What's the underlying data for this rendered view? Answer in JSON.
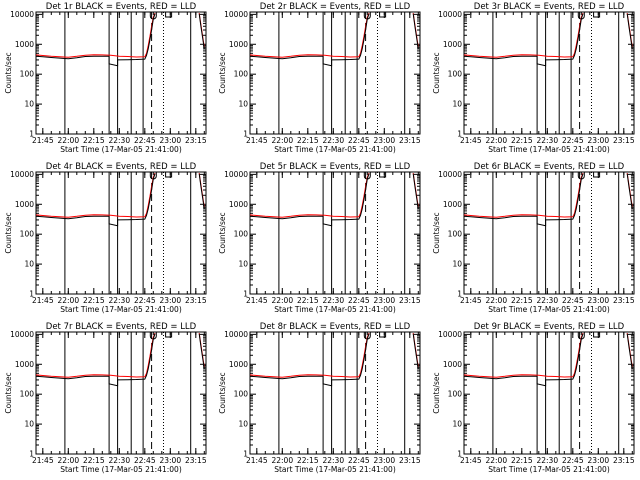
{
  "chart_data": {
    "type": "line",
    "subplot_titles": [
      "Det 1r BLACK = Events, RED = LLD",
      "Det 2r BLACK = Events, RED = LLD",
      "Det 3r BLACK = Events, RED = LLD",
      "Det 4r BLACK = Events, RED = LLD",
      "Det 5r BLACK = Events, RED = LLD",
      "Det 6r BLACK = Events, RED = LLD",
      "Det 7r BLACK = Events, RED = LLD",
      "Det 8r BLACK = Events, RED = LLD",
      "Det 9r BLACK = Events, RED = LLD"
    ],
    "xlabel": "Start Time (17-Mar-05 21:41:00)",
    "ylabel": "Counts/sec",
    "y_scale": "log",
    "ylim": [
      1,
      12000
    ],
    "xlim": [
      "21:41",
      "23:21"
    ],
    "x_ticks": [
      "21:45",
      "22:00",
      "22:15",
      "22:30",
      "22:45",
      "23:00",
      "23:15"
    ],
    "y_ticks": [
      "1",
      "10",
      "100",
      "1000",
      "10000"
    ],
    "solid_markers": [
      "21:58",
      "22:24",
      "22:29",
      "22:37",
      "22:44",
      "23:12"
    ],
    "dashed_markers": [
      "22:49"
    ],
    "dotted_markers": [
      "22:56"
    ],
    "short_marks": [
      {
        "time": "22:50",
        "shape": "U"
      },
      {
        "time": "22:59",
        "shape": "bracket"
      }
    ],
    "series": [
      {
        "name": "Events",
        "color": "#000000",
        "x": [
          "21:41",
          "21:45",
          "21:50",
          "21:55",
          "22:00",
          "22:05",
          "22:10",
          "22:15",
          "22:20",
          "22:24",
          "22:24",
          "22:29",
          "22:29",
          "22:35",
          "22:40",
          "22:45",
          "22:46",
          "22:47",
          "22:48",
          "22:49",
          "22:50",
          "22:51",
          "23:17",
          "23:18",
          "23:20"
        ],
        "y": [
          400,
          380,
          360,
          345,
          330,
          355,
          390,
          400,
          395,
          400,
          220,
          190,
          300,
          305,
          310,
          320,
          420,
          700,
          1400,
          3000,
          7000,
          10500,
          10500,
          4000,
          700
        ]
      },
      {
        "name": "LLD",
        "color": "#ff0000",
        "x": [
          "21:41",
          "21:45",
          "21:50",
          "21:55",
          "22:00",
          "22:05",
          "22:10",
          "22:15",
          "22:20",
          "22:25",
          "22:30",
          "22:35",
          "22:40",
          "22:45",
          "22:46",
          "22:47",
          "22:48",
          "22:49",
          "22:50",
          "22:51",
          "23:17",
          "23:18",
          "23:20"
        ],
        "y": [
          440,
          420,
          400,
          385,
          370,
          395,
          430,
          445,
          440,
          430,
          400,
          390,
          375,
          380,
          500,
          900,
          1800,
          4000,
          8000,
          11000,
          11000,
          4500,
          800
        ]
      }
    ]
  }
}
